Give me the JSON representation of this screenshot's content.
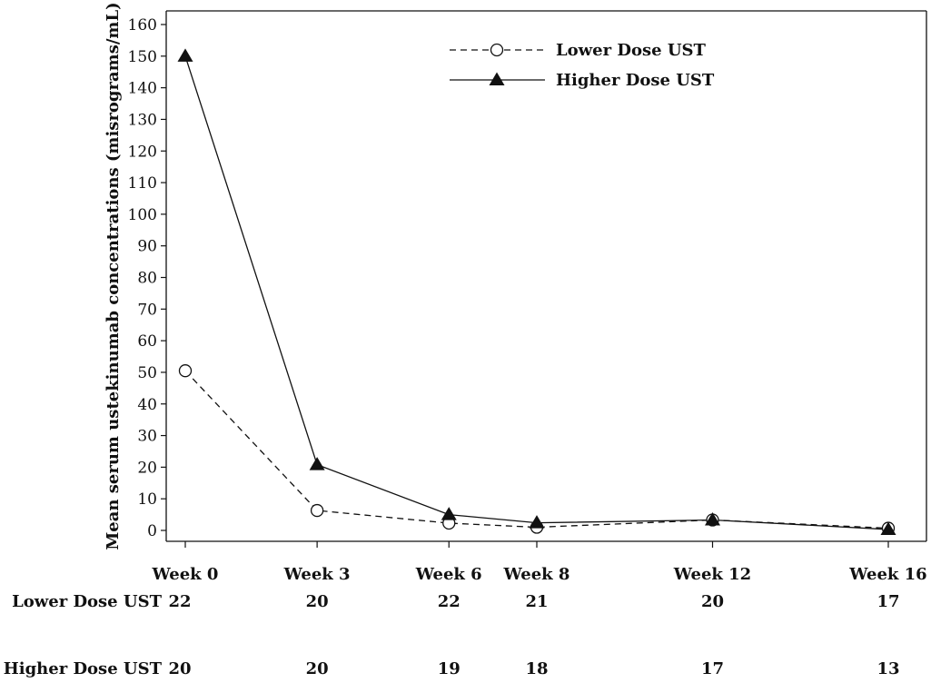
{
  "chart_data": {
    "type": "line",
    "ylabel": "Mean serum ustekinumab concentrations (misrograms/mL)",
    "xlabel": "",
    "ylim": [
      0,
      160
    ],
    "yticks": [
      0,
      10,
      20,
      30,
      40,
      50,
      60,
      70,
      80,
      90,
      100,
      110,
      120,
      130,
      140,
      150,
      160
    ],
    "x_weeks": [
      0,
      3,
      6,
      8,
      12,
      16
    ],
    "categories": [
      "Week 0",
      "Week 3",
      "Week 6",
      "Week 8",
      "Week 12",
      "Week 16"
    ],
    "series": [
      {
        "name": "Lower Dose UST",
        "marker": "open-circle",
        "line_style": "dashed",
        "values": [
          50.5,
          6.3,
          2.3,
          1.0,
          3.3,
          0.7
        ]
      },
      {
        "name": "Higher Dose UST",
        "marker": "filled-triangle",
        "line_style": "solid",
        "values": [
          150,
          20.8,
          5.0,
          2.4,
          3.3,
          0.3
        ]
      }
    ],
    "legend_position": "top-right",
    "grid": false,
    "number_at_risk": [
      {
        "label": "Lower Dose UST",
        "counts": [
          22,
          20,
          22,
          21,
          20,
          17
        ]
      },
      {
        "label": "Higher Dose UST",
        "counts": [
          20,
          20,
          19,
          18,
          17,
          13
        ]
      }
    ]
  }
}
